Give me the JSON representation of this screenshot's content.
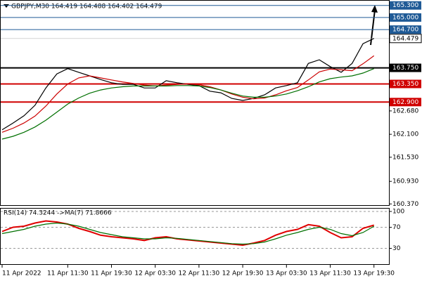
{
  "chart_data": [
    {
      "type": "line",
      "title": "GBPJPY,M30  164.419 164.488 164.402 164.479",
      "categories": [
        "11 Apr 2022",
        null,
        null,
        null,
        null,
        null,
        "11 Apr 11:30",
        null,
        null,
        null,
        "11 Apr 19:30",
        null,
        null,
        null,
        "12 Apr 03:30",
        null,
        null,
        null,
        "12 Apr 11:30",
        null,
        null,
        null,
        "12 Apr 19:30",
        null,
        null,
        null,
        "13 Apr 03:30",
        null,
        null,
        null,
        "13 Apr 11:30",
        null,
        null,
        null,
        "13 Apr 19:30"
      ],
      "series": [
        {
          "color": "#000000",
          "values": [
            162.21,
            162.38,
            162.56,
            162.82,
            163.25,
            163.6,
            163.73,
            163.64,
            163.55,
            163.46,
            163.38,
            163.34,
            163.34,
            163.25,
            163.25,
            163.43,
            163.38,
            163.34,
            163.31,
            163.17,
            163.13,
            162.99,
            162.94,
            162.99,
            163.08,
            163.25,
            163.31,
            163.38,
            163.86,
            163.95,
            163.78,
            163.64,
            163.86,
            164.35,
            164.48
          ]
        },
        {
          "color": "#cc0000",
          "values": [
            162.15,
            162.25,
            162.38,
            162.55,
            162.8,
            163.1,
            163.35,
            163.5,
            163.55,
            163.5,
            163.45,
            163.4,
            163.36,
            163.32,
            163.3,
            163.32,
            163.34,
            163.35,
            163.33,
            163.28,
            163.2,
            163.1,
            163.02,
            162.98,
            163.0,
            163.08,
            163.18,
            163.26,
            163.45,
            163.65,
            163.72,
            163.7,
            163.68,
            163.85,
            164.05
          ]
        },
        {
          "color": "#007000",
          "values": [
            161.98,
            162.05,
            162.15,
            162.28,
            162.45,
            162.65,
            162.85,
            163.0,
            163.12,
            163.2,
            163.25,
            163.28,
            163.3,
            163.3,
            163.3,
            163.3,
            163.31,
            163.31,
            163.3,
            163.26,
            163.2,
            163.12,
            163.05,
            163.02,
            163.02,
            163.05,
            163.1,
            163.18,
            163.28,
            163.4,
            163.48,
            163.52,
            163.55,
            163.62,
            163.73
          ]
        }
      ],
      "ylim": [
        160.34,
        165.4
      ],
      "yticks": [
        {
          "value": 162.68,
          "label": "162.680"
        },
        {
          "value": 162.1,
          "label": "162.100"
        },
        {
          "value": 161.53,
          "label": "161.530"
        },
        {
          "value": 160.93,
          "label": "160.930"
        },
        {
          "value": 160.37,
          "label": "160.370"
        }
      ],
      "levels": [
        {
          "value": 165.3,
          "label": "165.300",
          "color": "#1f5a96"
        },
        {
          "value": 165.0,
          "label": "165.000",
          "color": "#1f5a96"
        },
        {
          "value": 164.7,
          "label": "164.700",
          "color": "#1f5a96"
        },
        {
          "value": 163.75,
          "label": "163.750",
          "color": "#000000"
        },
        {
          "value": 163.35,
          "label": "163.350",
          "color": "#d00000"
        },
        {
          "value": 162.9,
          "label": "162.900",
          "color": "#d00000"
        }
      ],
      "current": {
        "value": 164.479,
        "label": "164.479"
      }
    },
    {
      "type": "line",
      "title": "RSI(14) 74.3244 ->MA(7) 71.8666",
      "series": [
        {
          "color": "#e00000",
          "values": [
            62,
            70,
            72,
            78,
            82,
            80,
            76,
            68,
            62,
            55,
            52,
            50,
            48,
            45,
            50,
            52,
            48,
            46,
            44,
            42,
            40,
            38,
            36,
            40,
            45,
            55,
            62,
            66,
            75,
            72,
            60,
            50,
            52,
            68,
            74
          ]
        },
        {
          "color": "#007000",
          "values": [
            58,
            62,
            66,
            72,
            76,
            78,
            76,
            72,
            66,
            60,
            56,
            52,
            50,
            48,
            48,
            50,
            49,
            47,
            45,
            43,
            41,
            39,
            38,
            39,
            42,
            48,
            55,
            60,
            66,
            70,
            66,
            58,
            54,
            60,
            72
          ]
        }
      ],
      "ylim": [
        0,
        104
      ],
      "yticks": [
        30,
        70,
        100
      ],
      "grid": true
    }
  ]
}
